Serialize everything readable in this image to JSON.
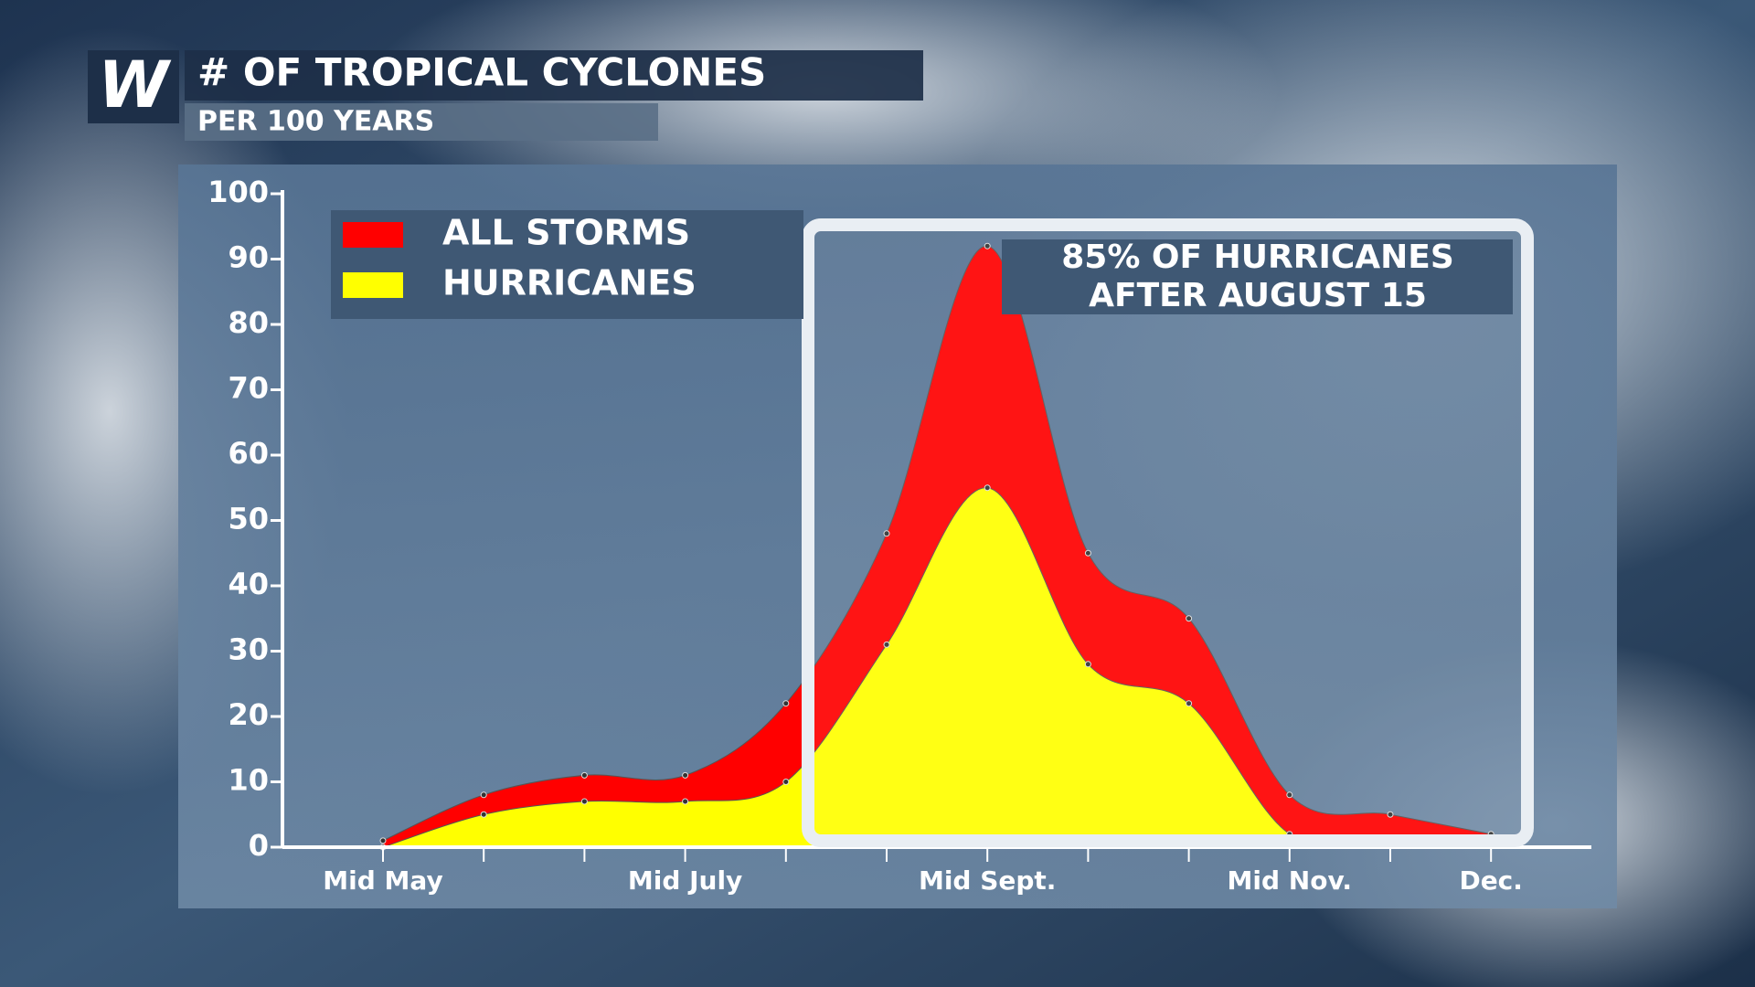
{
  "logo": "W",
  "chart_data": {
    "type": "area",
    "title": "# OF TROPICAL CYCLONES",
    "subtitle": "PER 100 YEARS",
    "annotation": [
      "85% OF HURRICANES",
      "AFTER AUGUST 15"
    ],
    "categories": [
      "Mid May",
      null,
      null,
      "Mid July",
      null,
      null,
      "Mid Sept.",
      null,
      null,
      "Mid Nov.",
      null,
      "Dec."
    ],
    "series": [
      {
        "name": "ALL STORMS",
        "color": "#ff0000",
        "values": [
          1,
          8,
          11,
          11,
          22,
          48,
          92,
          45,
          35,
          8,
          5,
          2
        ]
      },
      {
        "name": "HURRICANES",
        "color": "#ffff00",
        "values": [
          0,
          5,
          7,
          7,
          10,
          31,
          55,
          28,
          22,
          2,
          1,
          1
        ]
      }
    ],
    "ylim": [
      0,
      100
    ],
    "yticks": [
      0,
      10,
      20,
      30,
      40,
      50,
      60,
      70,
      80,
      90,
      100
    ],
    "legend": "top-left"
  }
}
